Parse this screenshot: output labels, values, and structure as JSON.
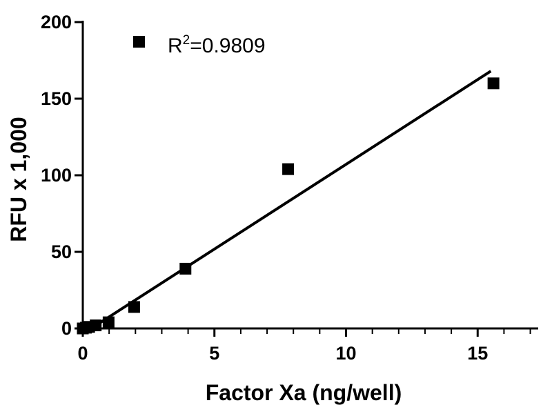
{
  "chart_data": {
    "type": "scatter",
    "xlabel": "Factor Xa (ng/well)",
    "ylabel": "RFU x 1,000",
    "xlim": [
      0,
      17.3
    ],
    "ylim": [
      0,
      200
    ],
    "x_ticks": [
      0,
      5,
      10,
      15
    ],
    "y_ticks": [
      0,
      50,
      100,
      150,
      200
    ],
    "x_minor_step": 1,
    "grid": false,
    "marker_color": "#000000",
    "series": [
      {
        "x": [
          0,
          0.12,
          0.24,
          0.49,
          0.98,
          1.95,
          3.9,
          7.8,
          15.6
        ],
        "y": [
          0,
          0.5,
          1,
          2,
          4,
          14,
          39,
          104,
          160
        ]
      }
    ],
    "fit_line": {
      "x": [
        0.5,
        15.5
      ],
      "y": [
        2,
        168
      ]
    },
    "legend": {
      "placement": "top-left",
      "label": "R",
      "superscript": "2",
      "value": "=0.9809"
    }
  }
}
